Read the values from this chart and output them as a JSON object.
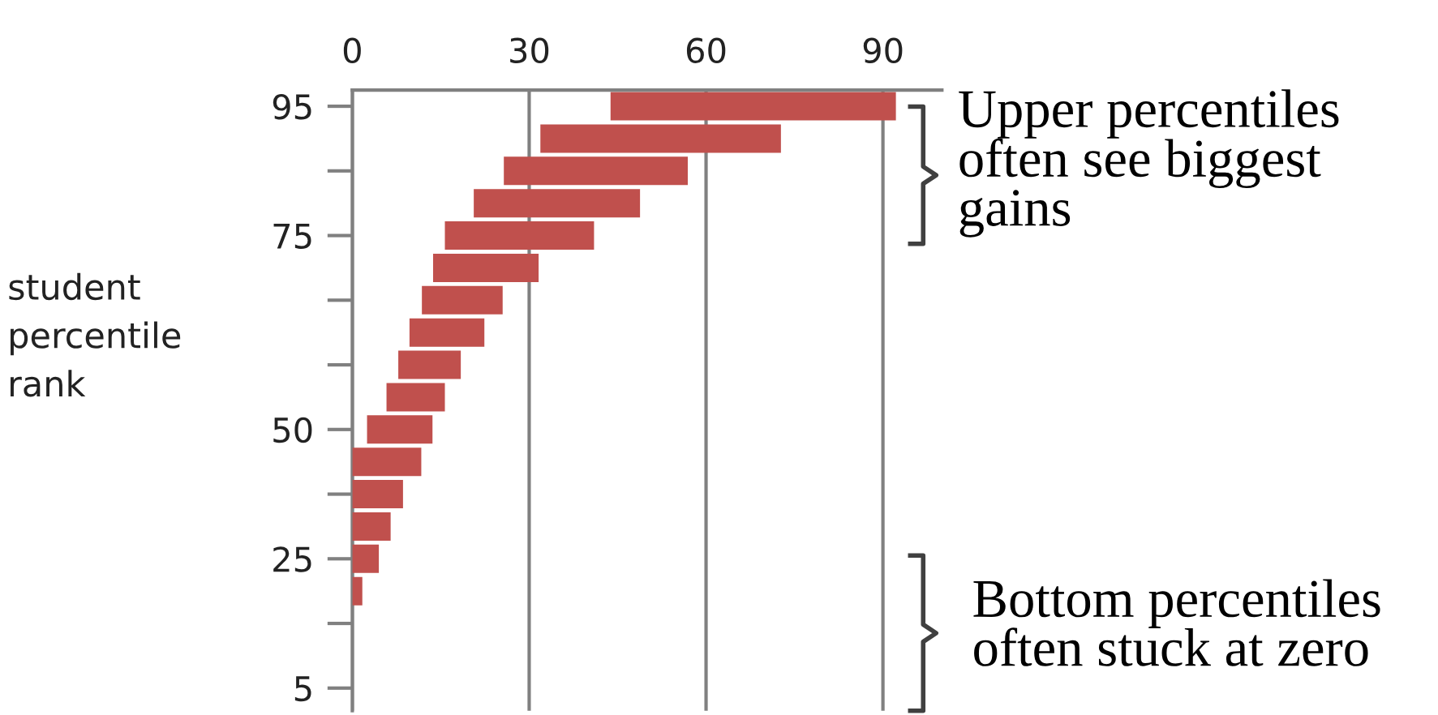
{
  "chart_data": {
    "type": "bar",
    "orientation": "horizontal",
    "ylabel": "student\npercentile\nrank",
    "categories": [
      "95",
      null,
      null,
      null,
      "75",
      null,
      null,
      null,
      null,
      null,
      "50",
      null,
      null,
      null,
      "25",
      null,
      null,
      null,
      "5"
    ],
    "base": [
      43.8,
      31.9,
      25.7,
      20.6,
      15.7,
      13.7,
      11.8,
      9.7,
      7.8,
      5.8,
      2.5,
      0,
      0,
      0,
      0,
      0,
      null,
      null,
      null
    ],
    "values": [
      48.4,
      40.8,
      31.2,
      28.2,
      25.3,
      17.9,
      13.7,
      12.7,
      10.6,
      9.9,
      11.1,
      11.7,
      8.6,
      6.5,
      4.5,
      1.7,
      null,
      null,
      null
    ],
    "color": "#c0504d",
    "xlim": [
      0,
      100
    ],
    "xticks": [
      0,
      30,
      60,
      90
    ],
    "grid": "x",
    "annotations": [
      "Upper percentiles\noften see biggest\ngains",
      "Bottom percentiles\noften stuck at zero"
    ]
  }
}
